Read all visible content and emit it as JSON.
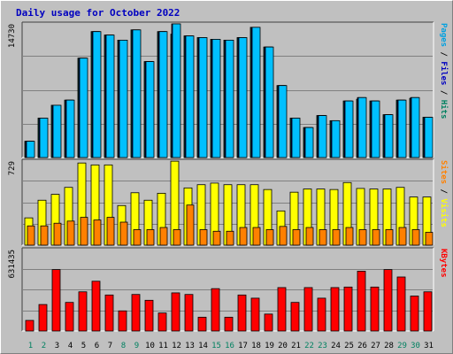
{
  "chart_data": {
    "type": "bar",
    "title": "Daily usage for October 2022",
    "categories": [
      "1",
      "2",
      "3",
      "4",
      "5",
      "6",
      "7",
      "8",
      "9",
      "10",
      "11",
      "12",
      "13",
      "14",
      "15",
      "16",
      "17",
      "18",
      "19",
      "20",
      "21",
      "22",
      "23",
      "24",
      "25",
      "26",
      "27",
      "28",
      "29",
      "30",
      "31"
    ],
    "weekend_days": [
      1,
      2,
      8,
      9,
      15,
      16,
      22,
      23,
      29,
      30
    ],
    "panels": [
      {
        "name": "hits_files_pages",
        "ylim": [
          0,
          15600
        ],
        "max_tick_label": "14730",
        "right_label": [
          {
            "text": "Pages",
            "color": "#00a0e0"
          },
          {
            "text": " / ",
            "color": "#000000"
          },
          {
            "text": "Files",
            "color": "#0000c0"
          },
          {
            "text": " / ",
            "color": "#000000"
          },
          {
            "text": "Hits",
            "color": "#008060"
          }
        ],
        "series": [
          {
            "name": "Hits",
            "color": "#00a078",
            "values": [
              1900,
              4600,
              6100,
              6700,
              11600,
              14700,
              14300,
              13700,
              14900,
              11200,
              14700,
              14400,
              14200,
              14000,
              13800,
              13700,
              14000,
              15200,
              12900,
              8400,
              4600,
              3500,
              4900,
              4300,
              6600,
              6800,
              6600,
              5000,
              6700,
              6900,
              4700
            ]
          },
          {
            "name": "Files",
            "color": "#0000c0",
            "values": [
              1900,
              4600,
              6100,
              6700,
              11600,
              14700,
              14300,
              13700,
              14900,
              11200,
              14700,
              15600,
              14200,
              14000,
              13800,
              13700,
              14000,
              15200,
              12900,
              8400,
              4600,
              3500,
              4900,
              4300,
              6600,
              7000,
              6600,
              5000,
              6700,
              7000,
              4700
            ]
          },
          {
            "name": "Pages",
            "color": "#00c0ff",
            "values": [
              1900,
              4600,
              6100,
              6700,
              11600,
              14700,
              14300,
              13700,
              14900,
              11200,
              14700,
              15600,
              14200,
              14000,
              13800,
              13700,
              14000,
              15200,
              12900,
              8400,
              4600,
              3500,
              4900,
              4300,
              6600,
              7000,
              6600,
              5000,
              6700,
              7000,
              4700
            ]
          }
        ]
      },
      {
        "name": "visits_sites",
        "ylim": [
          0,
          786
        ],
        "max_tick_label": "729",
        "right_label": [
          {
            "text": "Sites",
            "color": "#ff8000"
          },
          {
            "text": " / ",
            "color": "#000000"
          },
          {
            "text": "Visits",
            "color": "#ffff00"
          }
        ],
        "series": [
          {
            "name": "Visits",
            "color": "#ffff00",
            "values": [
              255,
              420,
              475,
              540,
              768,
              750,
              750,
              370,
              490,
              420,
              485,
              785,
              535,
              565,
              580,
              565,
              565,
              565,
              520,
              320,
              495,
              525,
              525,
              520,
              585,
              530,
              525,
              525,
              540,
              450,
              450
            ]
          },
          {
            "name": "Sites",
            "color": "#ff8000",
            "values": [
              180,
              180,
              205,
              225,
              260,
              235,
              260,
              215,
              145,
              145,
              165,
              145,
              375,
              145,
              130,
              130,
              165,
              165,
              145,
              175,
              145,
              165,
              145,
              145,
              165,
              145,
              145,
              145,
              165,
              145,
              120
            ]
          }
        ]
      },
      {
        "name": "kbytes",
        "ylim": [
          0,
          769000
        ],
        "max_tick_label": "631435",
        "right_label": [
          {
            "text": "KBytes",
            "color": "#ff0000"
          }
        ],
        "series": [
          {
            "name": "KBytes",
            "color": "#ff0000",
            "values": [
              100000,
              250000,
              580000,
              270000,
              370000,
              470000,
              340000,
              190000,
              345000,
              290000,
              170000,
              360000,
              345000,
              130000,
              400000,
              130000,
              340000,
              310000,
              160000,
              410000,
              270000,
              410000,
              310000,
              410000,
              415000,
              565000,
              415000,
              580000,
              510000,
              330000,
              370000
            ]
          }
        ]
      }
    ]
  }
}
